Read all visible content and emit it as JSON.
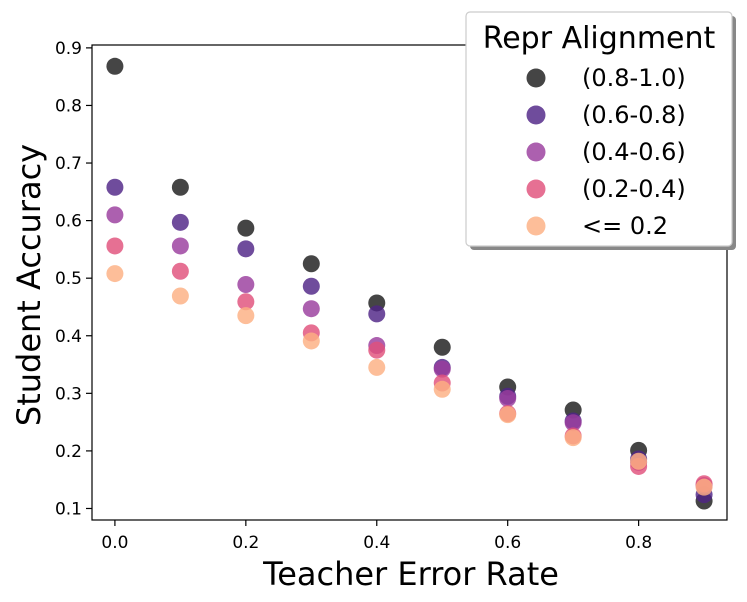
{
  "chart_data": {
    "type": "scatter",
    "title": "",
    "xlabel": "Teacher Error Rate",
    "ylabel": "Student Accuracy",
    "xlim": [
      -0.035,
      0.935
    ],
    "ylim": [
      0.08,
      0.905
    ],
    "xticks": [
      0.0,
      0.2,
      0.4,
      0.6,
      0.8
    ],
    "xtick_labels": [
      "0.0",
      "0.2",
      "0.4",
      "0.6",
      "0.8"
    ],
    "yticks": [
      0.1,
      0.2,
      0.3,
      0.4,
      0.5,
      0.6,
      0.7,
      0.8,
      0.9
    ],
    "ytick_labels": [
      "0.1",
      "0.2",
      "0.3",
      "0.4",
      "0.5",
      "0.6",
      "0.7",
      "0.8",
      "0.9"
    ],
    "grid": false,
    "legend": {
      "title": "Repr Alignment",
      "position": "top-right"
    },
    "x": [
      0.0,
      0.1,
      0.2,
      0.3,
      0.4,
      0.5,
      0.6,
      0.7,
      0.8,
      0.9
    ],
    "series": [
      {
        "name": "(0.8-1.0)",
        "color": "#1c1c1c",
        "values": [
          0.868,
          0.658,
          0.587,
          0.525,
          0.457,
          0.38,
          0.311,
          0.271,
          0.201,
          0.113
        ]
      },
      {
        "name": "(0.6-0.8)",
        "color": "#4f2586",
        "values": [
          0.658,
          0.597,
          0.551,
          0.486,
          0.438,
          0.345,
          0.295,
          0.252,
          0.186,
          0.124
        ]
      },
      {
        "name": "(0.4-0.6)",
        "color": "#9a3d9e",
        "values": [
          0.61,
          0.556,
          0.489,
          0.447,
          0.383,
          0.342,
          0.291,
          0.249,
          0.18,
          0.14
        ]
      },
      {
        "name": "(0.2-0.4)",
        "color": "#e0507b",
        "values": [
          0.556,
          0.512,
          0.459,
          0.405,
          0.375,
          0.318,
          0.265,
          0.226,
          0.173,
          0.143
        ]
      },
      {
        "name": "<= 0.2",
        "color": "#fdb082",
        "values": [
          0.508,
          0.469,
          0.435,
          0.391,
          0.345,
          0.307,
          0.263,
          0.223,
          0.182,
          0.137
        ]
      }
    ]
  }
}
